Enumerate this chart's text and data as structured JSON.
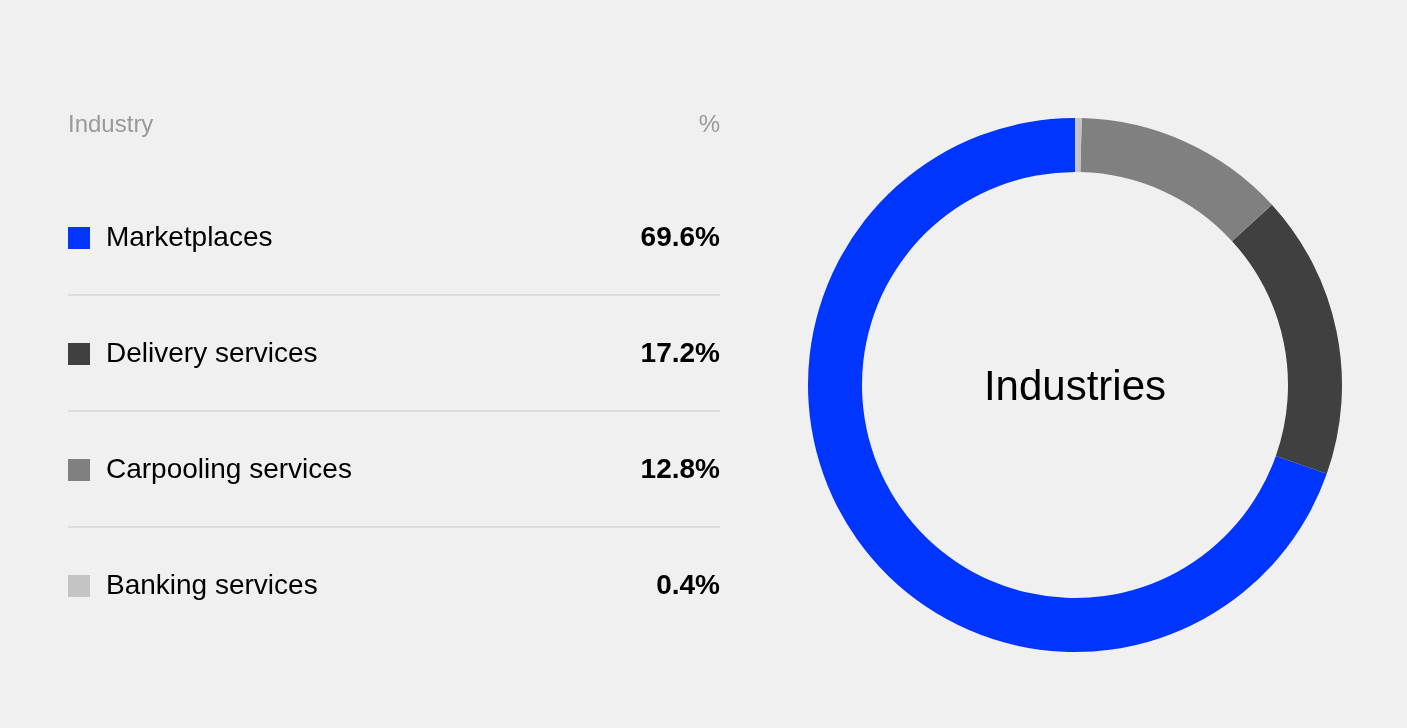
{
  "chart_data": {
    "type": "donut",
    "title": "Industries",
    "legend_title": "Industry",
    "annotations": [
      "%"
    ],
    "categories": [
      "Marketplaces",
      "Delivery services",
      "Carpooling services",
      "Banking services"
    ],
    "values": [
      69.6,
      17.2,
      12.8,
      0.4
    ],
    "colors": [
      "#0035ff",
      "#404040",
      "#808080",
      "#c4c4c4"
    ],
    "value_labels": [
      "69.6%",
      "17.2%",
      "12.8%",
      "0.4%"
    ],
    "legend": "left"
  }
}
